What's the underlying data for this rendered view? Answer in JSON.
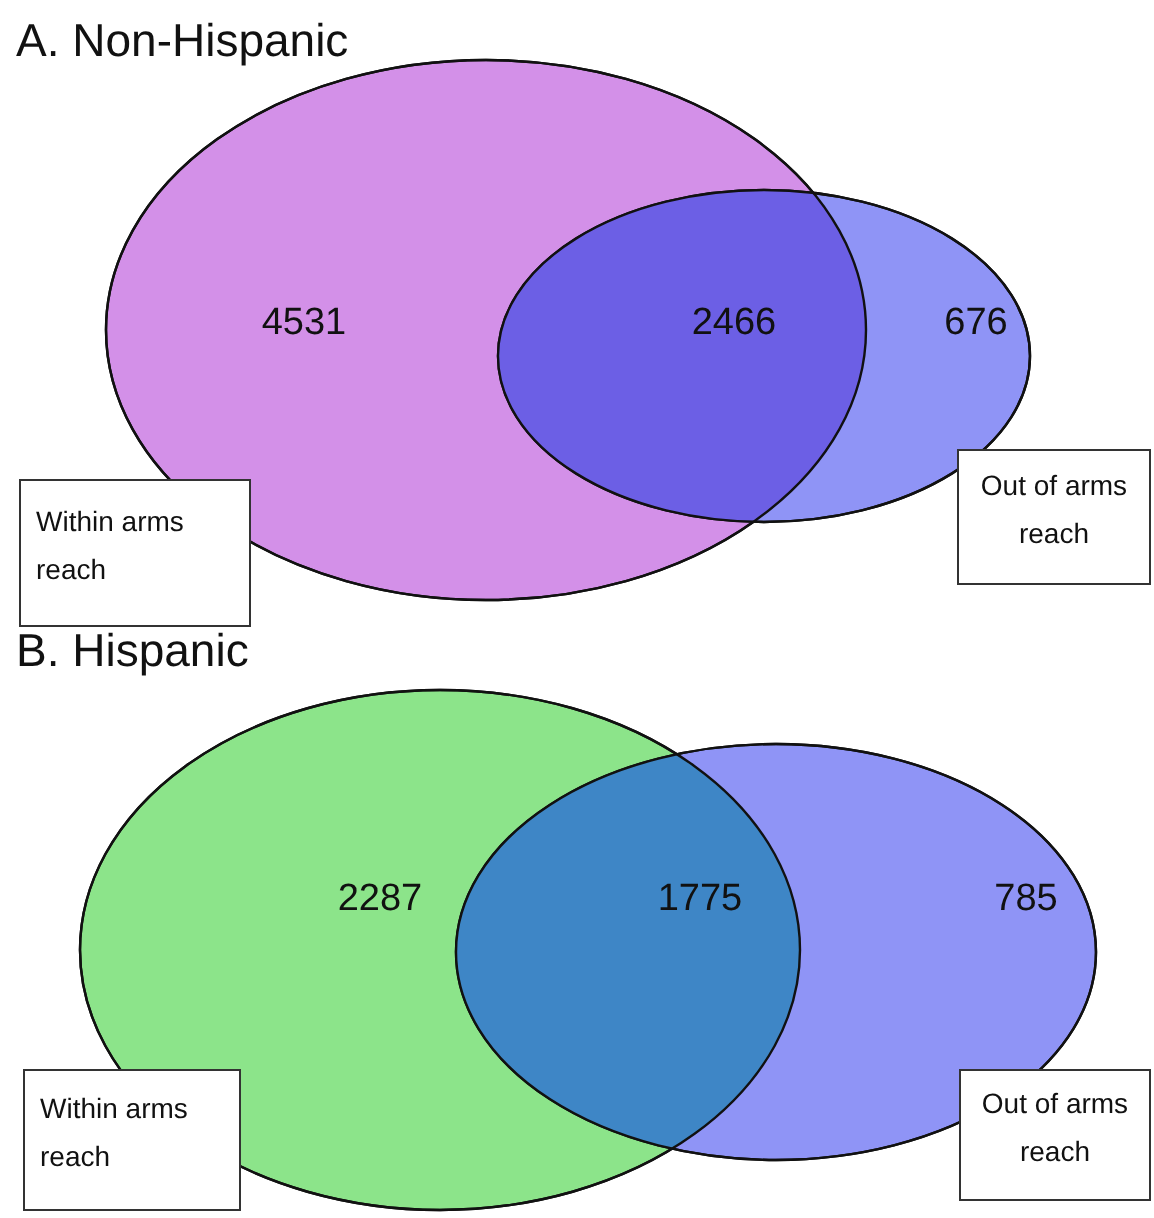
{
  "chart_data": [
    {
      "type": "other",
      "title": "A. Non-Hispanic",
      "categories": [
        null,
        null,
        null
      ],
      "values": [
        4531,
        2466,
        676
      ],
      "colors": [
        "#d390e8",
        "#6c5fe5",
        "#8f94f6"
      ],
      "data_labels": true,
      "annotations": [
        "Within arms reach",
        "Out of arms reach"
      ]
    },
    {
      "type": "other",
      "title": "B. Hispanic",
      "categories": [
        null,
        null,
        null
      ],
      "values": [
        2287,
        1775,
        785
      ],
      "colors": [
        "#8ce48a",
        "#3e86c6",
        "#8f94f6"
      ],
      "data_labels": true,
      "annotations": [
        "Within arms reach",
        "Out of arms reach"
      ]
    }
  ]
}
